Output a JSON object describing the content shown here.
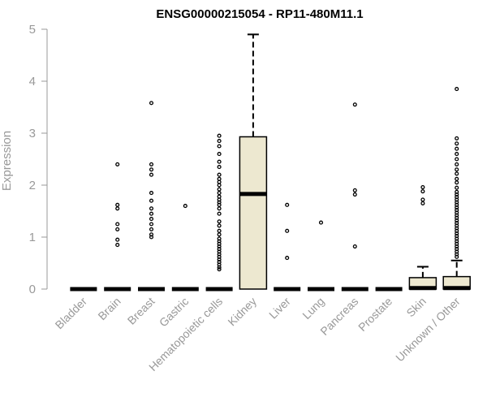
{
  "chart_data": {
    "type": "boxplot",
    "title": "ENSG00000215054 - RP11-480M11.1",
    "xlabel": "",
    "ylabel": "Expression",
    "ylim": [
      0,
      5
    ],
    "yticks": [
      0,
      1,
      2,
      3,
      4,
      5
    ],
    "box_fill": "#ede8d0",
    "axis_color": "#999999",
    "categories": [
      "Bladder",
      "Brain",
      "Breast",
      "Gastric",
      "Hematopoietic cells",
      "Kidney",
      "Liver",
      "Lung",
      "Pancreas",
      "Prostate",
      "Skin",
      "Unknown / Other"
    ],
    "boxes": [
      {
        "q1": 0,
        "median": 0,
        "q3": 0,
        "whisker_low": 0,
        "whisker_high": 0,
        "outliers": []
      },
      {
        "q1": 0,
        "median": 0,
        "q3": 0,
        "whisker_low": 0,
        "whisker_high": 0,
        "outliers": [
          0.85,
          0.95,
          1.15,
          1.25,
          1.55,
          1.62,
          2.4
        ]
      },
      {
        "q1": 0,
        "median": 0,
        "q3": 0,
        "whisker_low": 0,
        "whisker_high": 0,
        "outliers": [
          1.0,
          1.05,
          1.15,
          1.25,
          1.35,
          1.45,
          1.55,
          1.7,
          1.85,
          2.2,
          2.3,
          2.4,
          3.58
        ]
      },
      {
        "q1": 0,
        "median": 0,
        "q3": 0,
        "whisker_low": 0,
        "whisker_high": 0,
        "outliers": [
          1.6
        ]
      },
      {
        "q1": 0,
        "median": 0,
        "q3": 0,
        "whisker_low": 0,
        "whisker_high": 0,
        "outliers": [
          0.38,
          0.42,
          0.47,
          0.52,
          0.57,
          0.62,
          0.67,
          0.72,
          0.77,
          0.82,
          0.87,
          0.92,
          0.97,
          1.05,
          1.12,
          1.22,
          1.3,
          1.45,
          1.55,
          1.62,
          1.67,
          1.72,
          1.78,
          1.85,
          1.92,
          2.0,
          2.06,
          2.12,
          2.2,
          2.35,
          2.45,
          2.6,
          2.75,
          2.85,
          2.95
        ]
      },
      {
        "q1": 0,
        "median": 1.83,
        "q3": 2.93,
        "whisker_low": 0,
        "whisker_high": 4.9,
        "outliers": []
      },
      {
        "q1": 0,
        "median": 0,
        "q3": 0,
        "whisker_low": 0,
        "whisker_high": 0,
        "outliers": [
          0.6,
          1.12,
          1.62
        ]
      },
      {
        "q1": 0,
        "median": 0,
        "q3": 0,
        "whisker_low": 0,
        "whisker_high": 0,
        "outliers": [
          1.28
        ]
      },
      {
        "q1": 0,
        "median": 0,
        "q3": 0,
        "whisker_low": 0,
        "whisker_high": 0,
        "outliers": [
          0.82,
          1.82,
          1.9,
          3.55
        ]
      },
      {
        "q1": 0,
        "median": 0,
        "q3": 0,
        "whisker_low": 0,
        "whisker_high": 0,
        "outliers": []
      },
      {
        "q1": 0,
        "median": 0.02,
        "q3": 0.22,
        "whisker_low": 0,
        "whisker_high": 0.43,
        "outliers": [
          1.65,
          1.72,
          1.88,
          1.96
        ]
      },
      {
        "q1": 0,
        "median": 0.02,
        "q3": 0.24,
        "whisker_low": 0,
        "whisker_high": 0.55,
        "outliers": [
          0.62,
          0.67,
          0.72,
          0.77,
          0.82,
          0.87,
          0.92,
          0.97,
          1.02,
          1.07,
          1.12,
          1.17,
          1.22,
          1.27,
          1.32,
          1.37,
          1.42,
          1.47,
          1.52,
          1.57,
          1.62,
          1.67,
          1.72,
          1.77,
          1.82,
          1.87,
          1.95,
          2.05,
          2.12,
          2.22,
          2.3,
          2.4,
          2.5,
          2.6,
          2.7,
          2.8,
          2.9,
          3.85
        ]
      }
    ]
  }
}
